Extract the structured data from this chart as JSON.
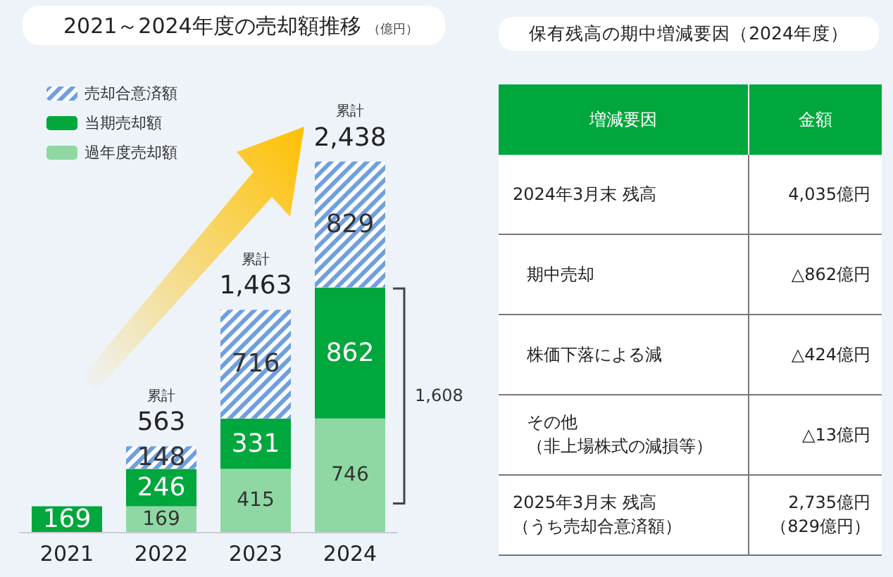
{
  "chart_data": [
    {
      "type": "bar",
      "title": "2021～2024年度の売却額推移",
      "subtitle": "（億円）",
      "categories": [
        "2021",
        "2022",
        "2023",
        "2024"
      ],
      "stacked": true,
      "series": [
        {
          "name": "過年度売却額",
          "color": "#8fd8a4",
          "values": [
            null,
            169,
            415,
            746
          ]
        },
        {
          "name": "当期売却額",
          "color": "#00a73c",
          "values": [
            169,
            246,
            331,
            862
          ]
        },
        {
          "name": "売却合意済額",
          "color": "#6f9fe0",
          "values": [
            null,
            148,
            716,
            829
          ]
        }
      ],
      "data_labels": true,
      "totals": [
        null,
        "563",
        "1,463",
        "2,438"
      ],
      "annotations": [
        {
          "text": "累計",
          "x": "2022",
          "y": 563
        },
        {
          "text": "累計",
          "x": "2023",
          "y": 1463
        },
        {
          "text": "累計",
          "x": "2024",
          "y": 2438
        },
        "1,608"
      ],
      "legend": "top left"
    },
    {
      "type": "other",
      "title": "保有残高の期中増減要因（2024年度）",
      "annotations": [
        "増減要因",
        "金額"
      ],
      "categories": [
        "2024年3月末 残高",
        "期中売却",
        "株価下落による減",
        "その他（非上場株式の減損等）",
        "2025年3月末 残高（うち売却合意済額）"
      ],
      "value_labels": [
        "4,035億円",
        "△862億円",
        "△424億円",
        "△13億円",
        "2,735億円（829億円）"
      ]
    }
  ]
}
